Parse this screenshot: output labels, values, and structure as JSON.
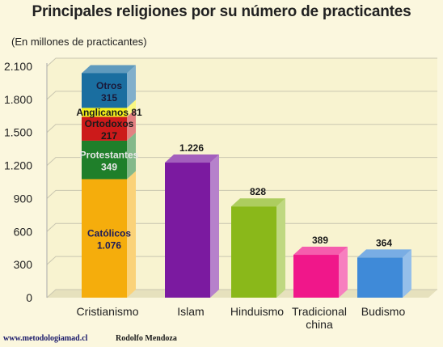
{
  "chart_data": {
    "type": "bar",
    "title": "Principales religiones por su número de practicantes",
    "ylabel": "(En millones de practicantes)",
    "xlabel": "",
    "ylim": [
      0,
      2100
    ],
    "y_ticks": [
      0,
      300,
      600,
      900,
      1200,
      1500,
      1800,
      2100
    ],
    "y_tick_labels": [
      "0",
      "300",
      "600",
      "900",
      "1.200",
      "1.500",
      "1.800",
      "2.100"
    ],
    "grid": true,
    "categories": [
      "Cristianismo",
      "Islam",
      "Hinduismo",
      "Tradicional\nchina",
      "Budismo"
    ],
    "stacked_bar": {
      "category": "Cristianismo",
      "segments": [
        {
          "name": "Católicos",
          "value": 1076,
          "value_label": "1.076",
          "color": "#f5ad0c",
          "label_color": "#1a1a5a"
        },
        {
          "name": "Protestantes",
          "value": 349,
          "value_label": "349",
          "color": "#1f7f2a",
          "label_color": "#e8e8e8"
        },
        {
          "name": "Ortodoxos",
          "value": 217,
          "value_label": "217",
          "color": "#cc1a1a",
          "label_color": "#1a1a1a"
        },
        {
          "name": "Anglicanos",
          "value": 81,
          "value_label": "81",
          "color": "#f5f21a",
          "label_color": "#1a1a1a"
        },
        {
          "name": "Otros",
          "value": 315,
          "value_label": "315",
          "color": "#1a6ea0",
          "label_color": "#1a1a3a"
        }
      ]
    },
    "bars": [
      {
        "category": "Islam",
        "value": 1226,
        "value_label": "1.226",
        "color": "#7b1aa0"
      },
      {
        "category": "Hinduismo",
        "value": 828,
        "value_label": "828",
        "color": "#8ab81a"
      },
      {
        "category": "Tradicional\nchina",
        "value": 389,
        "value_label": "389",
        "color": "#f0178a"
      },
      {
        "category": "Budismo",
        "value": 364,
        "value_label": "364",
        "color": "#3f8ad8"
      }
    ]
  },
  "footer": {
    "site": "www.metodologiamad.cl",
    "author": "Rodolfo Mendoza"
  }
}
